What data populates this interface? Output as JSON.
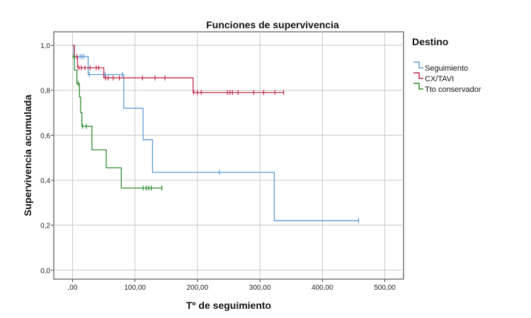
{
  "chart_data": {
    "type": "line",
    "title": "Funciones de supervivencia",
    "xlabel": "Tº de seguimiento",
    "ylabel": "Supervivencia acumulada",
    "xlim": [
      -30,
      530
    ],
    "ylim": [
      -0.04,
      1.06
    ],
    "x_ticks": [
      {
        "value": 0,
        "label": ",00"
      },
      {
        "value": 100,
        "label": "100,00"
      },
      {
        "value": 200,
        "label": "200,00"
      },
      {
        "value": 300,
        "label": "300,00"
      },
      {
        "value": 400,
        "label": "400,00"
      },
      {
        "value": 500,
        "label": "500,00"
      }
    ],
    "y_ticks": [
      {
        "value": 0.0,
        "label": "0,0"
      },
      {
        "value": 0.2,
        "label": "0,2"
      },
      {
        "value": 0.4,
        "label": "0,4"
      },
      {
        "value": 0.6,
        "label": "0,6"
      },
      {
        "value": 0.8,
        "label": "0,8"
      },
      {
        "value": 1.0,
        "label": "1,0"
      }
    ],
    "grid": true,
    "legend": {
      "title": "Destino",
      "placement": "right"
    },
    "series": [
      {
        "name": "Seguimiento",
        "color": "#5a9bd5",
        "steps": [
          [
            0,
            1.0
          ],
          [
            2,
            0.95
          ],
          [
            25,
            0.87
          ],
          [
            82,
            0.72
          ],
          [
            113,
            0.58
          ],
          [
            128,
            0.435
          ],
          [
            323,
            0.435
          ],
          [
            323,
            0.22
          ],
          [
            458,
            0.22
          ]
        ],
        "censored": [
          [
            12,
            0.95
          ],
          [
            15,
            0.95
          ],
          [
            18,
            0.95
          ],
          [
            27,
            0.87
          ],
          [
            52,
            0.87
          ],
          [
            80,
            0.87
          ],
          [
            235,
            0.435
          ],
          [
            458,
            0.22
          ]
        ]
      },
      {
        "name": "CX/TAVI",
        "color": "#c0284a",
        "steps": [
          [
            0,
            1.0
          ],
          [
            3,
            0.95
          ],
          [
            8,
            0.9
          ],
          [
            45,
            0.9
          ],
          [
            50,
            0.855
          ],
          [
            193,
            0.855
          ],
          [
            193,
            0.79
          ],
          [
            338,
            0.79
          ]
        ],
        "censored": [
          [
            7,
            0.95
          ],
          [
            10,
            0.9
          ],
          [
            14,
            0.9
          ],
          [
            20,
            0.9
          ],
          [
            28,
            0.9
          ],
          [
            38,
            0.9
          ],
          [
            42,
            0.9
          ],
          [
            53,
            0.855
          ],
          [
            57,
            0.855
          ],
          [
            65,
            0.855
          ],
          [
            75,
            0.855
          ],
          [
            112,
            0.855
          ],
          [
            132,
            0.855
          ],
          [
            148,
            0.855
          ],
          [
            194,
            0.79
          ],
          [
            200,
            0.79
          ],
          [
            206,
            0.79
          ],
          [
            248,
            0.79
          ],
          [
            252,
            0.79
          ],
          [
            256,
            0.79
          ],
          [
            265,
            0.79
          ],
          [
            290,
            0.79
          ],
          [
            306,
            0.79
          ],
          [
            324,
            0.79
          ],
          [
            338,
            0.79
          ]
        ]
      },
      {
        "name": "Tto conservador",
        "color": "#2e8b2e",
        "steps": [
          [
            0,
            0.95
          ],
          [
            3,
            0.89
          ],
          [
            7,
            0.83
          ],
          [
            11,
            0.77
          ],
          [
            13,
            0.7
          ],
          [
            15,
            0.64
          ],
          [
            31,
            0.535
          ],
          [
            54,
            0.455
          ],
          [
            78,
            0.365
          ],
          [
            143,
            0.365
          ]
        ],
        "censored": [
          [
            2,
            0.95
          ],
          [
            9,
            0.83
          ],
          [
            16,
            0.64
          ],
          [
            22,
            0.64
          ],
          [
            113,
            0.365
          ],
          [
            118,
            0.365
          ],
          [
            122,
            0.365
          ],
          [
            126,
            0.365
          ],
          [
            143,
            0.365
          ]
        ]
      }
    ]
  }
}
